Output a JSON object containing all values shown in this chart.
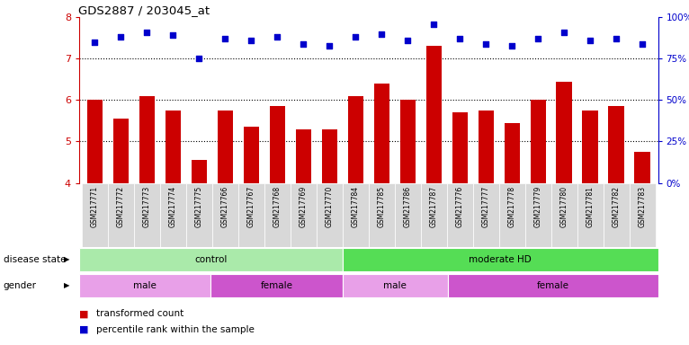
{
  "title": "GDS2887 / 203045_at",
  "samples": [
    "GSM217771",
    "GSM217772",
    "GSM217773",
    "GSM217774",
    "GSM217775",
    "GSM217766",
    "GSM217767",
    "GSM217768",
    "GSM217769",
    "GSM217770",
    "GSM217784",
    "GSM217785",
    "GSM217786",
    "GSM217787",
    "GSM217776",
    "GSM217777",
    "GSM217778",
    "GSM217779",
    "GSM217780",
    "GSM217781",
    "GSM217782",
    "GSM217783"
  ],
  "bar_values": [
    6.0,
    5.55,
    6.1,
    5.75,
    4.55,
    5.75,
    5.35,
    5.85,
    5.3,
    5.3,
    6.1,
    6.4,
    6.0,
    7.3,
    5.7,
    5.75,
    5.45,
    6.0,
    6.45,
    5.75,
    5.85,
    4.75
  ],
  "dot_values_pct": [
    85,
    88,
    91,
    89,
    75,
    87,
    86,
    88,
    84,
    83,
    88,
    90,
    86,
    96,
    87,
    84,
    83,
    87,
    91,
    86,
    87,
    84
  ],
  "ylim": [
    4,
    8
  ],
  "yticks": [
    4,
    5,
    6,
    7,
    8
  ],
  "dotted_lines": [
    5,
    6,
    7
  ],
  "right_ylim": [
    0,
    100
  ],
  "right_yticks": [
    0,
    25,
    50,
    75,
    100
  ],
  "right_yticklabels": [
    "0%",
    "25%",
    "50%",
    "75%",
    "100%"
  ],
  "bar_color": "#cc0000",
  "dot_color": "#0000cc",
  "disease_state_groups": [
    {
      "label": "control",
      "start": 0,
      "end": 10,
      "color": "#aaeaaa"
    },
    {
      "label": "moderate HD",
      "start": 10,
      "end": 22,
      "color": "#55dd55"
    }
  ],
  "gender_groups": [
    {
      "label": "male",
      "start": 0,
      "end": 5,
      "color": "#e8a0e8"
    },
    {
      "label": "female",
      "start": 5,
      "end": 10,
      "color": "#cc55cc"
    },
    {
      "label": "male",
      "start": 10,
      "end": 14,
      "color": "#e8a0e8"
    },
    {
      "label": "female",
      "start": 14,
      "end": 22,
      "color": "#cc55cc"
    }
  ],
  "legend_items": [
    {
      "label": "transformed count",
      "color": "#cc0000"
    },
    {
      "label": "percentile rank within the sample",
      "color": "#0000cc"
    }
  ],
  "bg_color": "#ffffff",
  "left_axis_color": "#cc0000",
  "right_axis_color": "#0000cc"
}
